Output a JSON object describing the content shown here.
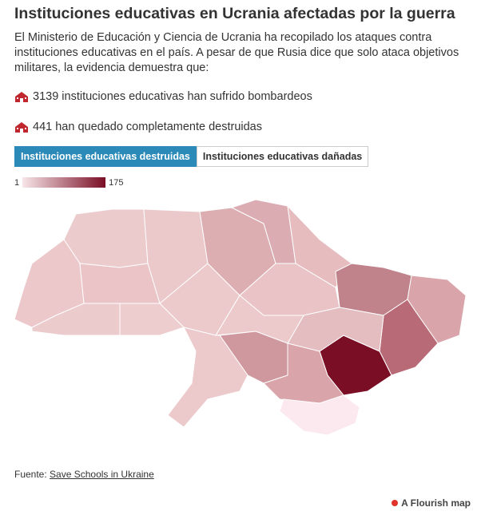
{
  "header": {
    "title": "Instituciones educativas en Ucrania afectadas por la guerra",
    "description": "El Ministerio de Educación y Ciencia de Ucrania ha recopilado los ataques contra instituciones educativas en el país. A pesar de que Rusia dice que solo ataca objetivos militares, la evidencia demuestra que:"
  },
  "stats": [
    "3139 instituciones educativas han sufrido bombardeos",
    "441 han quedado completamente destruidas"
  ],
  "tabs": [
    "Instituciones educativas destruidas",
    "Instituciones educativas dañadas"
  ],
  "legend": {
    "min": 1,
    "max": 175
  },
  "footer": {
    "source_label": "Fuente:",
    "source_link": "Save Schools in Ukraine",
    "brand": "A Flourish map"
  }
}
